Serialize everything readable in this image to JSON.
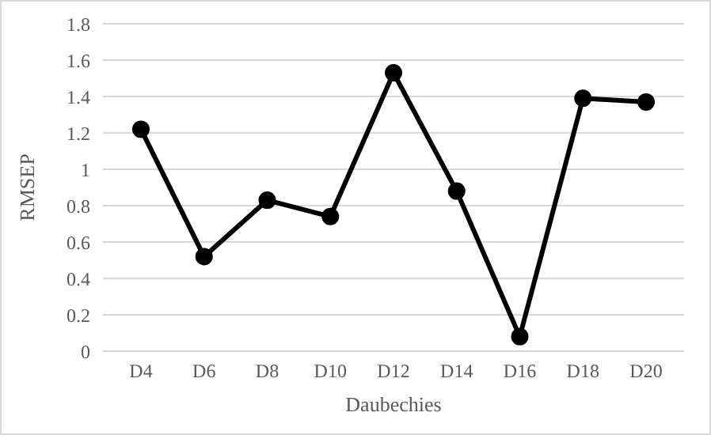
{
  "chart_data": {
    "type": "line",
    "xlabel": "Daubechies",
    "ylabel": "RMSEP",
    "categories": [
      "D4",
      "D6",
      "D8",
      "D10",
      "D12",
      "D14",
      "D16",
      "D18",
      "D20"
    ],
    "series": [
      {
        "color": "#000000",
        "values": [
          1.22,
          0.52,
          0.83,
          0.74,
          1.53,
          0.88,
          0.08,
          1.39,
          1.37
        ]
      }
    ],
    "ylim": [
      0,
      1.8
    ],
    "yticks": [
      0,
      0.2,
      0.4,
      0.6,
      0.8,
      1,
      1.2,
      1.4,
      1.6,
      1.8
    ],
    "grid": "y",
    "marker": "circle",
    "line_style": "solid"
  }
}
